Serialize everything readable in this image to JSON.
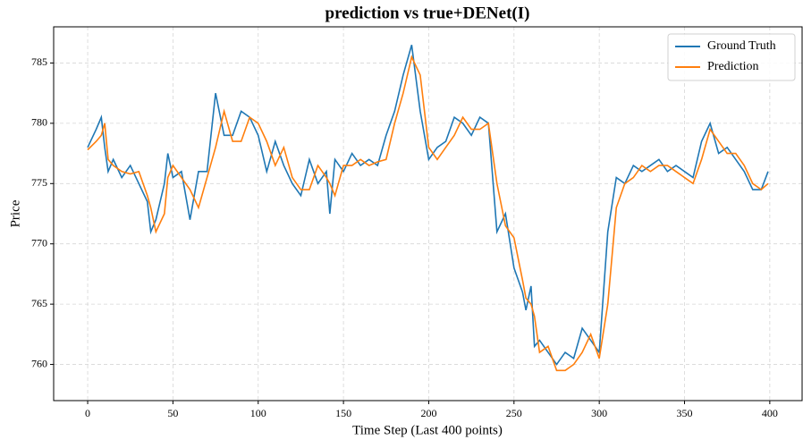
{
  "chart_data": {
    "type": "line",
    "title": "prediction vs true+DENet(I)",
    "xlabel": "Time Step (Last 400 points)",
    "ylabel": "Price",
    "x": [
      0,
      5,
      8,
      10,
      12,
      15,
      20,
      25,
      30,
      35,
      37,
      40,
      45,
      47,
      50,
      55,
      60,
      65,
      70,
      75,
      80,
      85,
      90,
      95,
      100,
      105,
      110,
      115,
      120,
      125,
      130,
      135,
      140,
      142,
      145,
      150,
      155,
      160,
      165,
      170,
      175,
      180,
      185,
      190,
      195,
      200,
      205,
      210,
      215,
      220,
      225,
      230,
      235,
      240,
      245,
      250,
      255,
      257,
      260,
      262,
      265,
      270,
      275,
      280,
      285,
      290,
      295,
      300,
      305,
      310,
      315,
      320,
      325,
      330,
      335,
      340,
      345,
      350,
      355,
      360,
      365,
      370,
      375,
      380,
      385,
      390,
      395,
      399
    ],
    "series": [
      {
        "name": "Ground Truth",
        "color": "#1f77b4",
        "values": [
          778,
          779.5,
          780.5,
          778,
          776,
          777,
          775.5,
          776.5,
          775,
          773.5,
          771,
          772,
          775,
          777.5,
          775.5,
          776,
          772,
          776,
          776,
          782.5,
          779,
          779,
          781,
          780.5,
          779,
          776,
          778.5,
          776.5,
          775,
          774,
          777,
          775,
          776,
          772.5,
          777,
          776,
          777.5,
          776.5,
          777,
          776.5,
          779,
          781,
          784,
          786.5,
          781,
          777,
          778,
          778.5,
          780.5,
          780,
          779,
          780.5,
          780,
          771,
          772.5,
          768,
          766,
          764.5,
          766.5,
          761.5,
          762,
          761,
          760,
          761,
          760.5,
          763,
          762,
          761,
          771,
          775.5,
          775,
          776.5,
          776,
          776.5,
          777,
          776,
          776.5,
          776,
          775.5,
          778.5,
          780,
          777.5,
          778,
          777,
          776,
          774.5,
          774.5,
          776
        ]
      },
      {
        "name": "Prediction",
        "color": "#ff7f0e",
        "values": [
          777.8,
          778.5,
          779,
          780,
          777,
          776.5,
          776,
          775.8,
          776,
          774,
          773,
          771,
          772.5,
          775.5,
          776.5,
          775.5,
          774.5,
          773,
          775.5,
          778,
          781,
          778.5,
          778.5,
          780.5,
          780,
          778.5,
          776.5,
          778,
          775.5,
          774.5,
          774.5,
          776.5,
          775.5,
          775,
          774,
          776.5,
          776.5,
          777,
          776.5,
          776.8,
          777,
          780,
          782.5,
          785.5,
          784,
          778,
          777,
          778,
          779,
          780.5,
          779.5,
          779.5,
          780,
          775,
          771.5,
          770.5,
          767,
          765.5,
          765,
          764,
          761,
          761.5,
          759.5,
          759.5,
          760,
          761,
          762.5,
          760.5,
          765,
          773,
          775,
          775.5,
          776.5,
          776,
          776.5,
          776.5,
          776,
          775.5,
          775,
          777,
          779.5,
          778.5,
          777.5,
          777.5,
          776.5,
          775,
          774.5,
          775
        ]
      }
    ],
    "xlim": [
      -19.95,
      418.95
    ],
    "ylim": [
      757.0,
      788.0
    ],
    "xticks": [
      0,
      50,
      100,
      150,
      200,
      250,
      300,
      350,
      400
    ],
    "yticks": [
      760,
      765,
      770,
      775,
      780,
      785
    ],
    "grid": true,
    "legend": "upper right"
  }
}
